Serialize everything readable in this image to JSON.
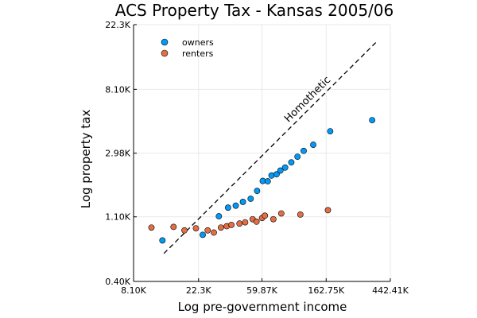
{
  "chart_data": {
    "type": "scatter",
    "title": "ACS Property Tax - Kansas 2005/06",
    "xlabel": "Log pre-government income",
    "ylabel": "Log property tax",
    "scale": {
      "x": "log",
      "y": "log"
    },
    "xlim": [
      8100,
      442410
    ],
    "ylim": [
      400,
      22300
    ],
    "x_ticks": [
      {
        "value": 8100,
        "label": "8.10K"
      },
      {
        "value": 22300,
        "label": "22.3K"
      },
      {
        "value": 59870,
        "label": "59.87K"
      },
      {
        "value": 162750,
        "label": "162.75K"
      },
      {
        "value": 442410,
        "label": "442.41K"
      }
    ],
    "y_ticks": [
      {
        "value": 400,
        "label": "0.40K"
      },
      {
        "value": 1100,
        "label": "1.10K"
      },
      {
        "value": 2980,
        "label": "2.98K"
      },
      {
        "value": 8100,
        "label": "8.10K"
      },
      {
        "value": 22300,
        "label": "22.3K"
      }
    ],
    "grid": true,
    "legend": {
      "position": "top-left"
    },
    "series": [
      {
        "name": "owners",
        "color": "#009af9",
        "points": [
          {
            "x": 12700,
            "y": 760
          },
          {
            "x": 23800,
            "y": 830
          },
          {
            "x": 30600,
            "y": 1110
          },
          {
            "x": 35300,
            "y": 1270
          },
          {
            "x": 39800,
            "y": 1310
          },
          {
            "x": 44500,
            "y": 1390
          },
          {
            "x": 50200,
            "y": 1460
          },
          {
            "x": 55500,
            "y": 1650
          },
          {
            "x": 60600,
            "y": 1930
          },
          {
            "x": 65500,
            "y": 1920
          },
          {
            "x": 69500,
            "y": 2100
          },
          {
            "x": 75200,
            "y": 2140
          },
          {
            "x": 79800,
            "y": 2270
          },
          {
            "x": 85900,
            "y": 2380
          },
          {
            "x": 94600,
            "y": 2580
          },
          {
            "x": 104100,
            "y": 2820
          },
          {
            "x": 114700,
            "y": 3090
          },
          {
            "x": 133100,
            "y": 3400
          },
          {
            "x": 173400,
            "y": 4200
          },
          {
            "x": 333300,
            "y": 5000
          }
        ]
      },
      {
        "name": "renters",
        "color": "#e26f46",
        "points": [
          {
            "x": 10700,
            "y": 930
          },
          {
            "x": 15100,
            "y": 940
          },
          {
            "x": 17900,
            "y": 890
          },
          {
            "x": 21400,
            "y": 920
          },
          {
            "x": 25700,
            "y": 890
          },
          {
            "x": 28300,
            "y": 860
          },
          {
            "x": 31600,
            "y": 930
          },
          {
            "x": 34600,
            "y": 950
          },
          {
            "x": 37200,
            "y": 970
          },
          {
            "x": 42200,
            "y": 990
          },
          {
            "x": 46100,
            "y": 1010
          },
          {
            "x": 51800,
            "y": 1060
          },
          {
            "x": 55000,
            "y": 1020
          },
          {
            "x": 60000,
            "y": 1080
          },
          {
            "x": 62700,
            "y": 1120
          },
          {
            "x": 71500,
            "y": 1060
          },
          {
            "x": 80900,
            "y": 1160
          },
          {
            "x": 108900,
            "y": 1140
          },
          {
            "x": 167300,
            "y": 1220
          }
        ]
      }
    ],
    "reference_line": {
      "label": "Homothetic",
      "style": "dashed",
      "color": "#000000",
      "from": {
        "x": 13000,
        "y": 620
      },
      "to": {
        "x": 360000,
        "y": 17200
      }
    }
  }
}
